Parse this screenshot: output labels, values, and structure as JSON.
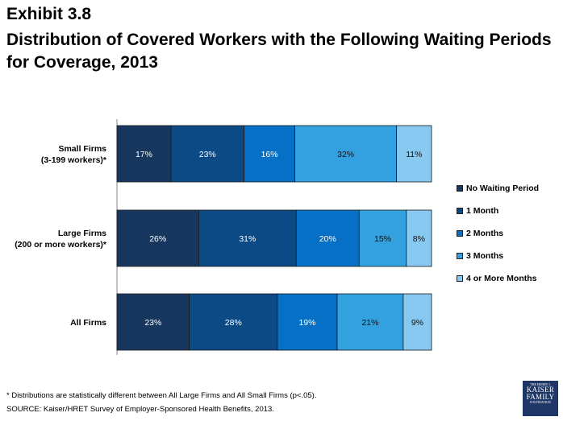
{
  "header": {
    "exhibit": "Exhibit 3.8",
    "title": "Distribution of Covered Workers with the Following Waiting Periods for Coverage, 2013"
  },
  "chart_data": {
    "type": "bar",
    "orientation": "horizontal",
    "stacked": true,
    "categories": [
      [
        "Small Firms",
        "(3-199 workers)*"
      ],
      [
        "Large Firms",
        "(200 or more workers)*"
      ],
      [
        "All Firms"
      ]
    ],
    "series": [
      {
        "name": "No Waiting Period",
        "color": "#17375e",
        "values": [
          17,
          26,
          23
        ]
      },
      {
        "name": "1 Month",
        "color": "#0b4a84",
        "values": [
          23,
          31,
          28
        ]
      },
      {
        "name": "2 Months",
        "color": "#0570c5",
        "values": [
          16,
          20,
          19
        ]
      },
      {
        "name": "3 Months",
        "color": "#33a0e0",
        "values": [
          32,
          15,
          21
        ]
      },
      {
        "name": "4 or More Months",
        "color": "#87c9f0",
        "values": [
          11,
          8,
          9
        ]
      }
    ],
    "value_suffix": "%",
    "legend_position": "right",
    "grid": false
  },
  "footer": {
    "footnote": "* Distributions are statistically different between All Large Firms and All Small Firms (p<.05).",
    "source": "SOURCE: Kaiser/HRET Survey of Employer-Sponsored Health Benefits, 2013."
  },
  "logo": {
    "line1": "THE HENRY J.",
    "line2": "KAISER",
    "line3": "FAMILY",
    "line4": "FOUNDATION"
  }
}
